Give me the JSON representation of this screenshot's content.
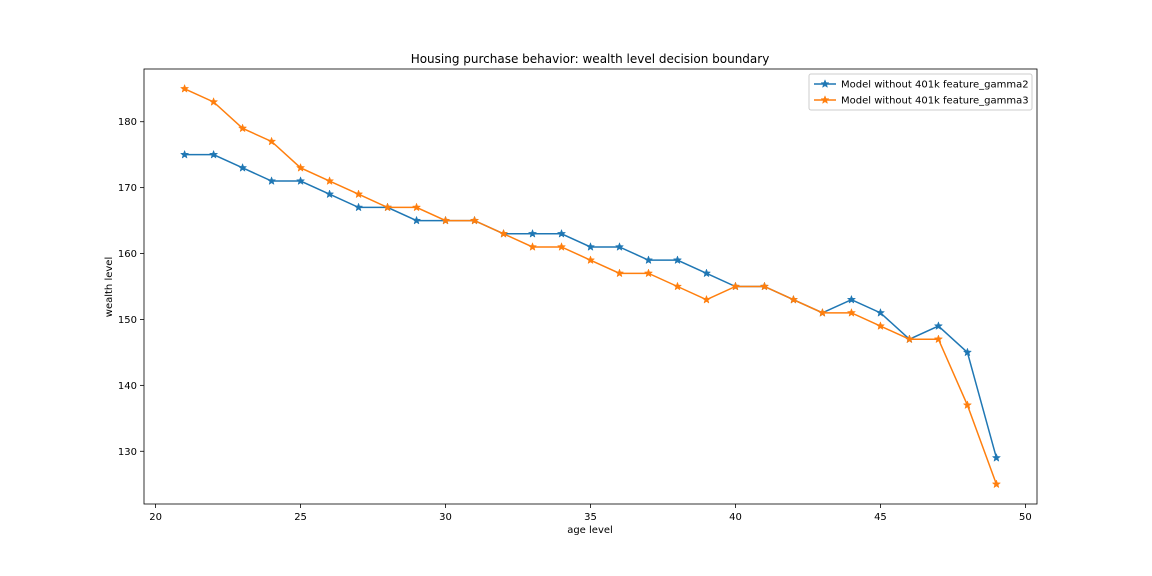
{
  "chart_data": {
    "type": "line",
    "title": "Housing purchase behavior: wealth level decision boundary",
    "xlabel": "age level",
    "ylabel": "wealth level",
    "xlim": [
      19.6,
      50.4
    ],
    "ylim": [
      122,
      188
    ],
    "xticks": [
      20,
      25,
      30,
      35,
      40,
      45,
      50
    ],
    "yticks": [
      130,
      140,
      150,
      160,
      170,
      180
    ],
    "grid": false,
    "legend_position": "top-right",
    "x": [
      21,
      22,
      23,
      24,
      25,
      26,
      27,
      28,
      29,
      30,
      31,
      32,
      33,
      34,
      35,
      36,
      37,
      38,
      39,
      40,
      41,
      42,
      43,
      44,
      45,
      46,
      47,
      48,
      49
    ],
    "series": [
      {
        "name": "Model without 401k feature_gamma2",
        "color": "#1f77b4",
        "marker": "star",
        "values": [
          175,
          175,
          173,
          171,
          171,
          169,
          167,
          167,
          165,
          165,
          165,
          163,
          163,
          163,
          161,
          161,
          159,
          159,
          157,
          155,
          155,
          153,
          151,
          153,
          151,
          147,
          149,
          145,
          129
        ]
      },
      {
        "name": "Model without 401k feature_gamma3",
        "color": "#ff7f0e",
        "marker": "star",
        "values": [
          185,
          183,
          179,
          177,
          173,
          171,
          169,
          167,
          167,
          165,
          165,
          163,
          161,
          161,
          159,
          157,
          157,
          155,
          153,
          155,
          155,
          153,
          151,
          151,
          149,
          147,
          147,
          137,
          125
        ]
      }
    ]
  }
}
